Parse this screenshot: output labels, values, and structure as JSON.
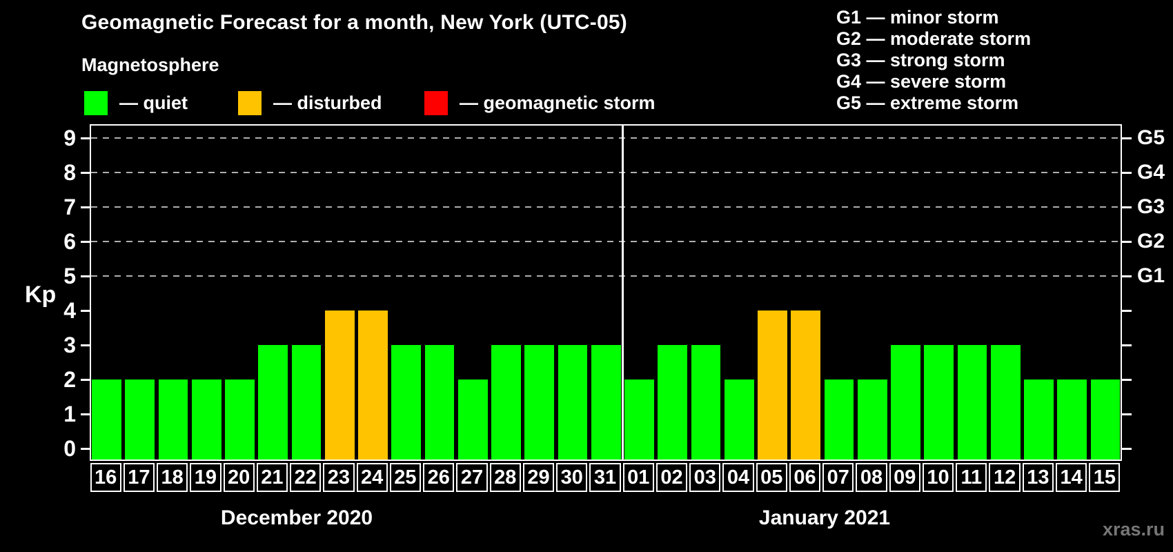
{
  "header": {
    "title": "Geomagnetic Forecast for a month, New York (UTC-05)",
    "subtitle": "Magnetosphere"
  },
  "magnetosphere_legend": [
    {
      "id": "quiet",
      "swatch": "#00ff00",
      "label": "— quiet"
    },
    {
      "id": "disturbed",
      "swatch": "#ffc300",
      "label": "— disturbed"
    },
    {
      "id": "storm",
      "swatch": "#ff0000",
      "label": "— geomagnetic storm"
    }
  ],
  "storm_scale_legend": [
    "G1 — minor storm",
    "G2 — moderate storm",
    "G3 — strong storm",
    "G4 — severe storm",
    "G5 — extreme storm"
  ],
  "watermark": "xras.ru",
  "chart_data": {
    "type": "bar",
    "ylabel": "Kp",
    "ylim": [
      0,
      9
    ],
    "yticks": [
      0,
      1,
      2,
      3,
      4,
      5,
      6,
      7,
      8,
      9
    ],
    "gridlines_at": [
      5,
      6,
      7,
      8,
      9
    ],
    "right_axis": [
      {
        "value": 5,
        "label": "G1"
      },
      {
        "value": 6,
        "label": "G2"
      },
      {
        "value": 7,
        "label": "G3"
      },
      {
        "value": 8,
        "label": "G4"
      },
      {
        "value": 9,
        "label": "G5"
      }
    ],
    "status_colors": {
      "quiet": "#00ff00",
      "disturbed": "#ffc300",
      "storm": "#ff0000"
    },
    "months": [
      {
        "label": "December 2020",
        "bars": [
          {
            "day": "16",
            "kp": 2,
            "status": "quiet"
          },
          {
            "day": "17",
            "kp": 2,
            "status": "quiet"
          },
          {
            "day": "18",
            "kp": 2,
            "status": "quiet"
          },
          {
            "day": "19",
            "kp": 2,
            "status": "quiet"
          },
          {
            "day": "20",
            "kp": 2,
            "status": "quiet"
          },
          {
            "day": "21",
            "kp": 3,
            "status": "quiet"
          },
          {
            "day": "22",
            "kp": 3,
            "status": "quiet"
          },
          {
            "day": "23",
            "kp": 4,
            "status": "disturbed"
          },
          {
            "day": "24",
            "kp": 4,
            "status": "disturbed"
          },
          {
            "day": "25",
            "kp": 3,
            "status": "quiet"
          },
          {
            "day": "26",
            "kp": 3,
            "status": "quiet"
          },
          {
            "day": "27",
            "kp": 2,
            "status": "quiet"
          },
          {
            "day": "28",
            "kp": 3,
            "status": "quiet"
          },
          {
            "day": "29",
            "kp": 3,
            "status": "quiet"
          },
          {
            "day": "30",
            "kp": 3,
            "status": "quiet"
          },
          {
            "day": "31",
            "kp": 3,
            "status": "quiet"
          }
        ]
      },
      {
        "label": "January 2021",
        "bars": [
          {
            "day": "01",
            "kp": 2,
            "status": "quiet"
          },
          {
            "day": "02",
            "kp": 3,
            "status": "quiet"
          },
          {
            "day": "03",
            "kp": 3,
            "status": "quiet"
          },
          {
            "day": "04",
            "kp": 2,
            "status": "quiet"
          },
          {
            "day": "05",
            "kp": 4,
            "status": "disturbed"
          },
          {
            "day": "06",
            "kp": 4,
            "status": "disturbed"
          },
          {
            "day": "07",
            "kp": 2,
            "status": "quiet"
          },
          {
            "day": "08",
            "kp": 2,
            "status": "quiet"
          },
          {
            "day": "09",
            "kp": 3,
            "status": "quiet"
          },
          {
            "day": "10",
            "kp": 3,
            "status": "quiet"
          },
          {
            "day": "11",
            "kp": 3,
            "status": "quiet"
          },
          {
            "day": "12",
            "kp": 3,
            "status": "quiet"
          },
          {
            "day": "13",
            "kp": 2,
            "status": "quiet"
          },
          {
            "day": "14",
            "kp": 2,
            "status": "quiet"
          },
          {
            "day": "15",
            "kp": 2,
            "status": "quiet"
          }
        ]
      }
    ]
  }
}
